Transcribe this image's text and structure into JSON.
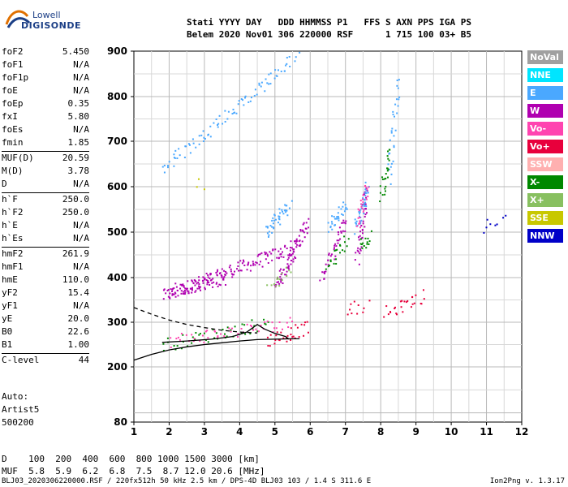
{
  "logo": {
    "line1": "Lowell",
    "line2": "DIGISONDE"
  },
  "header": {
    "line1": "Stati YYYY DAY   DDD HHMMSS P1   FFS S AXN PPS IGA PS",
    "line2": "Belem 2020 Nov01 306 220000 RSF      1 715 100 03+ B5"
  },
  "params": [
    {
      "k": "foF2",
      "v": "5.450"
    },
    {
      "k": "foF1",
      "v": "N/A"
    },
    {
      "k": "foF1p",
      "v": "N/A"
    },
    {
      "k": "foE",
      "v": "N/A"
    },
    {
      "k": "foEp",
      "v": "0.35"
    },
    {
      "k": "fxI",
      "v": "5.80"
    },
    {
      "k": "foEs",
      "v": "N/A"
    },
    {
      "k": "fmin",
      "v": "1.85"
    },
    {
      "k": "MUF(D)",
      "v": "20.59"
    },
    {
      "k": "M(D)",
      "v": "3.78"
    },
    {
      "k": "D",
      "v": "N/A"
    },
    {
      "k": "h`F",
      "v": "250.0"
    },
    {
      "k": "h`F2",
      "v": "250.0"
    },
    {
      "k": "h`E",
      "v": "N/A"
    },
    {
      "k": "h`Es",
      "v": "N/A"
    },
    {
      "k": "hmF2",
      "v": "261.9"
    },
    {
      "k": "hmF1",
      "v": "N/A"
    },
    {
      "k": "hmE",
      "v": "110.0"
    },
    {
      "k": "yF2",
      "v": "15.4"
    },
    {
      "k": "yF1",
      "v": "N/A"
    },
    {
      "k": "yE",
      "v": "20.0"
    },
    {
      "k": "B0",
      "v": "22.6"
    },
    {
      "k": "B1",
      "v": "1.00"
    },
    {
      "k": "C-level",
      "v": "44"
    }
  ],
  "auto": {
    "l1": "Auto:",
    "l2": "Artist5",
    "l3": "500200"
  },
  "legend": [
    {
      "label": "NoVal",
      "color": "#a0a0a0"
    },
    {
      "label": "NNE",
      "color": "#00e5ff"
    },
    {
      "label": "E",
      "color": "#4aa8ff"
    },
    {
      "label": "W",
      "color": "#b000b0"
    },
    {
      "label": "Vo-",
      "color": "#ff44b0"
    },
    {
      "label": "Vo+",
      "color": "#e8003c"
    },
    {
      "label": "SSW",
      "color": "#ffb0b0"
    },
    {
      "label": "X-",
      "color": "#008800"
    },
    {
      "label": "X+",
      "color": "#88c060"
    },
    {
      "label": "SSE",
      "color": "#c8c800"
    },
    {
      "label": "NNW",
      "color": "#0000c8"
    }
  ],
  "dmuf": {
    "d": "D    100  200  400  600  800 1000 1500 3000 [km]",
    "muf": "MUF  5.8  5.9  6.2  6.8  7.5  8.7 12.0 20.6 [MHz]"
  },
  "footer": "BLJ03_2020306220000.RSF / 220fx512h 50 kHz 2.5 km / DPS-4D BLJ03 103 / 1.4 S 311.6 E",
  "version": "Ion2Png v. 1.3.17",
  "chart_data": {
    "type": "scatter",
    "x_ticks": [
      "1",
      "2",
      "3",
      "4",
      "5",
      "6",
      "7",
      "8",
      "9",
      "10",
      "11",
      "12"
    ],
    "y_ticks": [
      "80",
      "200",
      "300",
      "400",
      "500",
      "600",
      "700",
      "800",
      "900"
    ],
    "xlim": [
      1,
      12
    ],
    "ylim": [
      80,
      900
    ],
    "grid": true,
    "legend_position": "right",
    "curves": [
      {
        "name": "solid",
        "x": [
          1,
          1.5,
          2,
          2.5,
          3,
          3.5,
          4,
          4.5,
          5,
          5.5,
          5.7
        ],
        "y": [
          215,
          228,
          238,
          245,
          250,
          254,
          258,
          261,
          262,
          263,
          263
        ]
      },
      {
        "name": "dashed",
        "x": [
          1,
          1.5,
          2,
          2.5,
          3,
          3.5,
          4,
          4.5
        ],
        "y": [
          333,
          318,
          305,
          295,
          288,
          282,
          278,
          276
        ]
      },
      {
        "name": "profile",
        "x": [
          1.8,
          2.5,
          3.2,
          3.8,
          4.2,
          4.5,
          4.7,
          5.0,
          5.3,
          5.4
        ],
        "y": [
          255,
          258,
          262,
          268,
          278,
          295,
          285,
          275,
          268,
          262
        ]
      }
    ],
    "traces": [
      {
        "series": "W",
        "x0": 1.8,
        "x1": 5.6,
        "y0": 360,
        "y1": 470,
        "n": 150
      },
      {
        "series": "W",
        "x0": 2.0,
        "x1": 3.6,
        "y0": 370,
        "y1": 400,
        "n": 60
      },
      {
        "series": "W",
        "x0": 5.0,
        "x1": 5.9,
        "y0": 380,
        "y1": 520,
        "n": 70
      },
      {
        "series": "W",
        "x0": 6.3,
        "x1": 7.0,
        "y0": 400,
        "y1": 530,
        "n": 40
      },
      {
        "series": "W",
        "x0": 7.3,
        "x1": 7.6,
        "y0": 440,
        "y1": 600,
        "n": 40
      },
      {
        "series": "E",
        "x0": 1.8,
        "x1": 5.6,
        "y0": 640,
        "y1": 890,
        "n": 90
      },
      {
        "series": "E",
        "x0": 4.7,
        "x1": 5.4,
        "y0": 500,
        "y1": 560,
        "n": 40
      },
      {
        "series": "E",
        "x0": 6.5,
        "x1": 7.0,
        "y0": 510,
        "y1": 560,
        "n": 30
      },
      {
        "series": "E",
        "x0": 7.3,
        "x1": 7.6,
        "y0": 510,
        "y1": 600,
        "n": 40
      },
      {
        "series": "E",
        "x0": 8.2,
        "x1": 8.5,
        "y0": 620,
        "y1": 840,
        "n": 30
      },
      {
        "series": "X-",
        "x0": 1.8,
        "x1": 4.8,
        "y0": 250,
        "y1": 300,
        "n": 45
      },
      {
        "series": "X-",
        "x0": 6.5,
        "x1": 7.0,
        "y0": 430,
        "y1": 480,
        "n": 20
      },
      {
        "series": "X-",
        "x0": 7.4,
        "x1": 7.7,
        "y0": 470,
        "y1": 490,
        "n": 14
      },
      {
        "series": "X-",
        "x0": 8.0,
        "x1": 8.2,
        "y0": 580,
        "y1": 680,
        "n": 24
      },
      {
        "series": "Vo-",
        "x0": 2.0,
        "x1": 5.5,
        "y0": 260,
        "y1": 300,
        "n": 50
      },
      {
        "series": "Vo-",
        "x0": 7.3,
        "x1": 7.6,
        "y0": 520,
        "y1": 600,
        "n": 24
      },
      {
        "series": "Vo+",
        "x0": 4.8,
        "x1": 5.9,
        "y0": 260,
        "y1": 290,
        "n": 30
      },
      {
        "series": "Vo+",
        "x0": 8.1,
        "x1": 9.2,
        "y0": 320,
        "y1": 360,
        "n": 26
      },
      {
        "series": "Vo+",
        "x0": 7.0,
        "x1": 7.6,
        "y0": 330,
        "y1": 340,
        "n": 10
      },
      {
        "series": "NNW",
        "x0": 10.9,
        "x1": 11.5,
        "y0": 515,
        "y1": 525,
        "n": 8
      },
      {
        "series": "X+",
        "x0": 4.8,
        "x1": 5.4,
        "y0": 380,
        "y1": 420,
        "n": 14
      },
      {
        "series": "SSE",
        "x0": 2.7,
        "x1": 3.0,
        "y0": 600,
        "y1": 610,
        "n": 3
      }
    ]
  }
}
